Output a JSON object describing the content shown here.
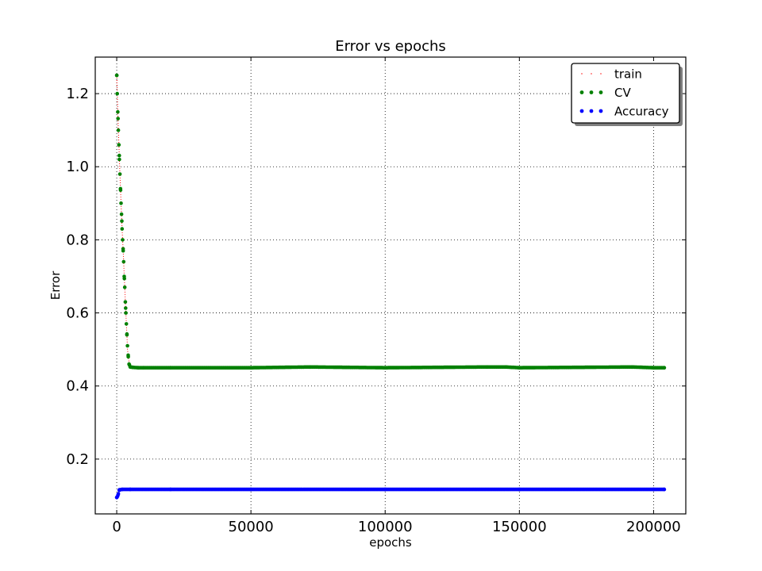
{
  "chart_data": {
    "type": "line",
    "title": "Error vs epochs",
    "xlabel": "epochs",
    "ylabel": "Error",
    "xlim": [
      -8000,
      212000
    ],
    "ylim": [
      0.05,
      1.3
    ],
    "xticks": [
      0,
      50000,
      100000,
      150000,
      200000
    ],
    "xtick_labels": [
      "0",
      "50000",
      "100000",
      "150000",
      "200000"
    ],
    "yticks": [
      0.2,
      0.4,
      0.6,
      0.8,
      1.0,
      1.2
    ],
    "ytick_labels": [
      "0.2",
      "0.4",
      "0.6",
      "0.8",
      "1.0",
      "1.2"
    ],
    "grid": true,
    "legend_position": "top-right",
    "x_end": 205000,
    "series": [
      {
        "name": "train",
        "color": "#ff0000",
        "style": "dotted-line",
        "x": [
          0,
          200,
          400,
          600,
          800,
          1000,
          1200,
          1400,
          1600,
          1800,
          2000,
          2200,
          2400,
          2600,
          2800,
          3000,
          3200,
          3400,
          3600,
          3800,
          4000,
          4500,
          5000
        ],
        "y": [
          1.25,
          1.2,
          1.15,
          1.1,
          1.06,
          1.02,
          0.98,
          0.94,
          0.9,
          0.87,
          0.83,
          0.8,
          0.77,
          0.74,
          0.7,
          0.67,
          0.63,
          0.6,
          0.57,
          0.54,
          0.5,
          0.47,
          0.455
        ]
      },
      {
        "name": "CV",
        "color": "#008000",
        "style": "dots",
        "x": [
          0,
          200,
          400,
          600,
          800,
          1000,
          1200,
          1400,
          1600,
          1800,
          2000,
          2200,
          2400,
          2600,
          2800,
          3000,
          3200,
          3400,
          3600,
          3800,
          4000,
          4300,
          4600,
          5000,
          6000,
          8000,
          10000,
          20000,
          50000,
          72000,
          100000,
          138000,
          145000,
          150000,
          192000,
          200000,
          204000
        ],
        "y": [
          1.25,
          1.2,
          1.15,
          1.1,
          1.06,
          1.02,
          0.98,
          0.94,
          0.9,
          0.87,
          0.83,
          0.8,
          0.77,
          0.74,
          0.7,
          0.67,
          0.63,
          0.6,
          0.57,
          0.54,
          0.51,
          0.48,
          0.46,
          0.452,
          0.451,
          0.45,
          0.45,
          0.45,
          0.45,
          0.452,
          0.45,
          0.452,
          0.452,
          0.45,
          0.452,
          0.45,
          0.45
        ]
      },
      {
        "name": "Accuracy",
        "color": "#0000ff",
        "style": "dots",
        "x": [
          0,
          300,
          600,
          1000,
          2000,
          5000,
          20000,
          50000,
          100000,
          150000,
          200000,
          204000
        ],
        "y": [
          0.095,
          0.098,
          0.105,
          0.116,
          0.117,
          0.117,
          0.117,
          0.117,
          0.117,
          0.117,
          0.117,
          0.117
        ]
      }
    ]
  }
}
